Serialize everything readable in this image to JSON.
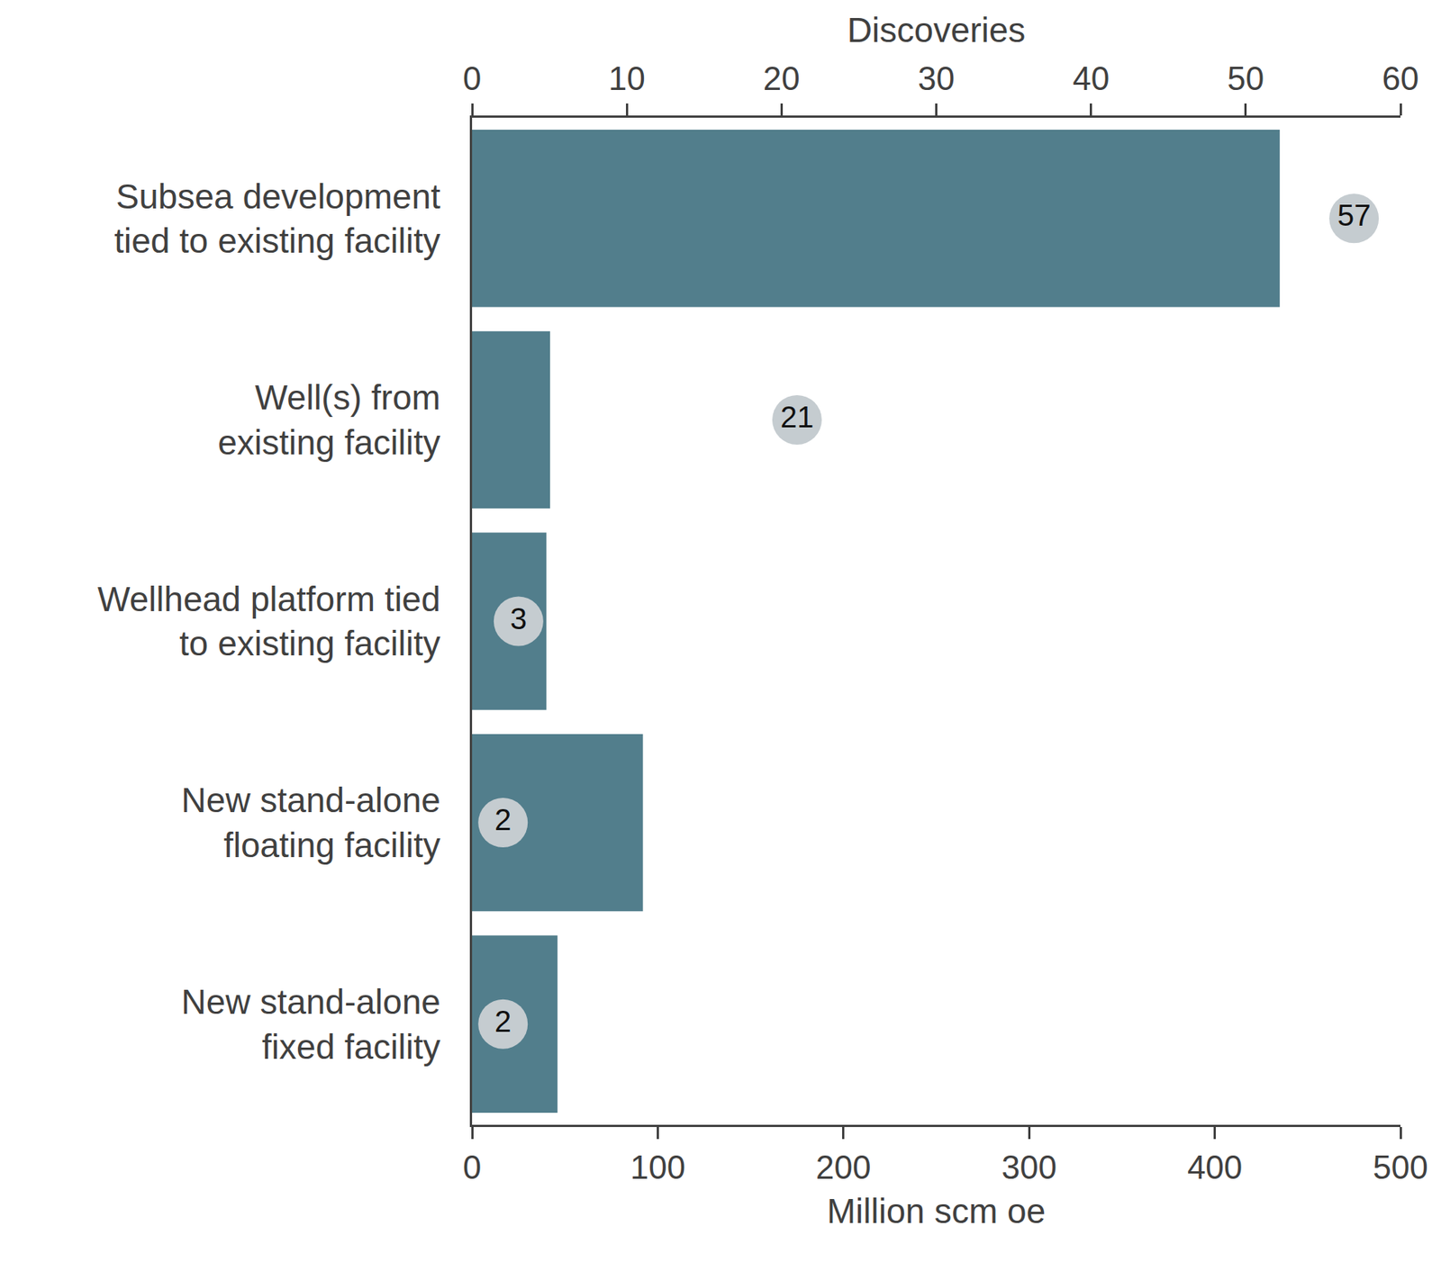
{
  "chart_data": {
    "type": "bar",
    "orientation": "horizontal",
    "categories": [
      "Subsea development\ntied to existing facility",
      "Well(s) from\nexisting facility",
      "Wellhead platform tied\nto existing facility",
      "New stand-alone\nfloating facility",
      "New stand-alone\nfixed facility"
    ],
    "xlabel": "Million scm oe",
    "x2label": "Discoveries",
    "xlim": [
      0,
      500
    ],
    "xticks": [
      0,
      100,
      200,
      300,
      400,
      500
    ],
    "x2lim": [
      0,
      60
    ],
    "x2ticks": [
      0,
      10,
      20,
      30,
      40,
      50,
      60
    ],
    "grid": false,
    "series": [
      {
        "type": "bar",
        "color": "#527e8c",
        "values": [
          435,
          42,
          40,
          92,
          46
        ]
      },
      {
        "type": "scatter",
        "axis": "x2",
        "marker": "circle",
        "color": "#c5ccd0",
        "data_labels": true,
        "values": [
          57,
          21,
          3,
          2,
          2
        ]
      }
    ]
  }
}
